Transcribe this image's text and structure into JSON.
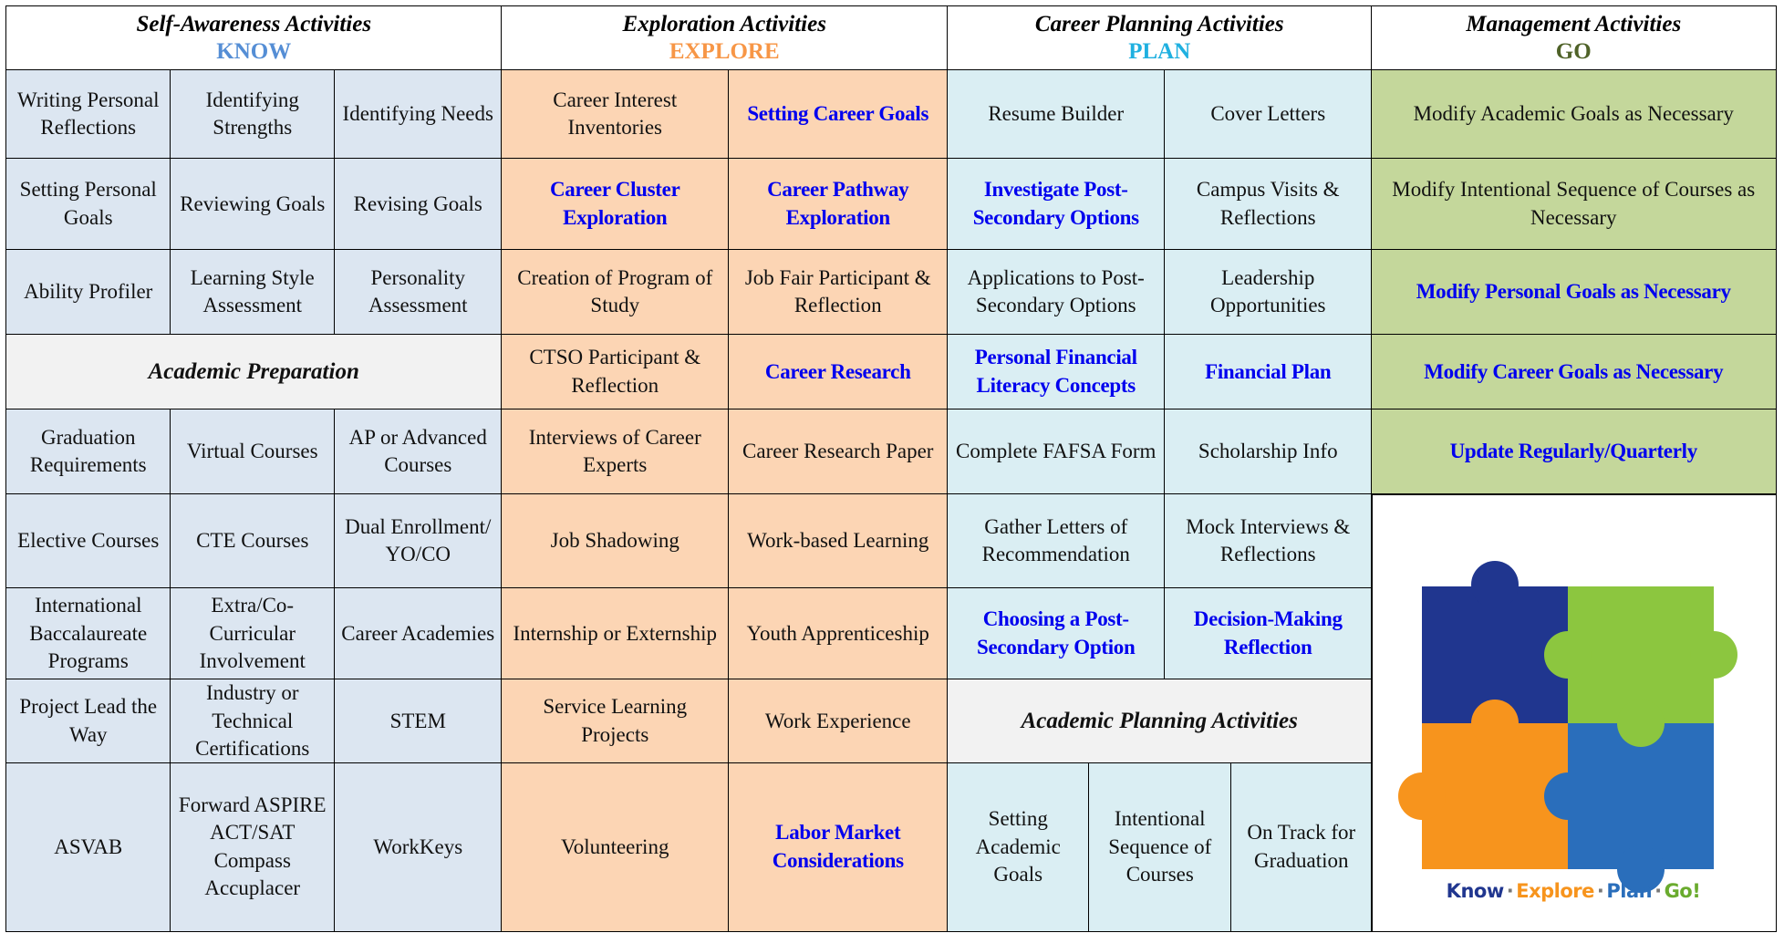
{
  "headers": [
    {
      "title": "Self-Awareness Activities",
      "label": "KNOW"
    },
    {
      "title": "Exploration Activities",
      "label": "EXPLORE"
    },
    {
      "title": "Career Planning Activities",
      "label": "PLAN"
    },
    {
      "title": "Management Activities",
      "label": "GO"
    }
  ],
  "know": {
    "rows": [
      [
        "Writing Personal Reflections",
        "Identifying Strengths",
        "Identifying Needs"
      ],
      [
        "Setting Personal Goals",
        "Reviewing Goals",
        "Revising Goals"
      ],
      [
        "Ability Profiler",
        "Learning Style Assessment",
        "Personality Assessment"
      ]
    ],
    "section": "Academic Preparation",
    "section_rows": [
      [
        "Graduation Requirements",
        "Virtual Courses",
        "AP or Advanced Courses"
      ],
      [
        "Elective Courses",
        "CTE Courses",
        "Dual Enrollment/ YO/CO"
      ],
      [
        "International Baccalaureate Programs",
        "Extra/Co-Curricular Involvement",
        "Career Academies"
      ],
      [
        "Project Lead the Way",
        "Industry or Technical Certifications",
        "STEM"
      ],
      [
        "ASVAB",
        "Forward ASPIRE ACT/SAT Compass Accuplacer",
        "WorkKeys"
      ]
    ]
  },
  "explore": {
    "rows": [
      [
        "Career Interest Inventories",
        "Setting Career Goals"
      ],
      [
        "Career Cluster Exploration",
        "Career Pathway Exploration"
      ],
      [
        "Creation of Program of Study",
        "Job Fair Participant & Reflection"
      ],
      [
        "CTSO Participant & Reflection",
        "Career Research"
      ],
      [
        "Interviews of Career Experts",
        "Career Research Paper"
      ],
      [
        "Job Shadowing",
        "Work-based Learning"
      ],
      [
        "Internship or Externship",
        "Youth Apprenticeship"
      ],
      [
        "Service Learning Projects",
        "Work Experience"
      ],
      [
        "Volunteering",
        "Labor Market Considerations"
      ]
    ]
  },
  "plan": {
    "rows": [
      [
        "Resume Builder",
        "Cover Letters"
      ],
      [
        "Investigate Post-Secondary Options",
        "Campus Visits & Reflections"
      ],
      [
        "Applications to Post-Secondary Options",
        "Leadership Opportunities"
      ],
      [
        "Personal Financial Literacy Concepts",
        "Financial Plan"
      ],
      [
        "Complete FAFSA Form",
        "Scholarship Info"
      ],
      [
        "Gather Letters of Recommendation",
        "Mock Interviews & Reflections"
      ],
      [
        "Choosing a Post-Secondary Option",
        "Decision-Making Reflection"
      ]
    ],
    "section": "Academic Planning Activities",
    "section_row": [
      "Setting Academic Goals",
      "Intentional Sequence of Courses",
      "On Track for Graduation"
    ]
  },
  "go": {
    "rows": [
      "Modify Academic Goals as Necessary",
      "Modify Intentional Sequence of Courses as Necessary",
      "Modify Personal Goals as Necessary",
      "Modify Career Goals as Necessary",
      "Update Regularly/Quarterly"
    ]
  },
  "logo": {
    "words": [
      "Know",
      "Explore",
      "Plan",
      "Go!"
    ]
  }
}
